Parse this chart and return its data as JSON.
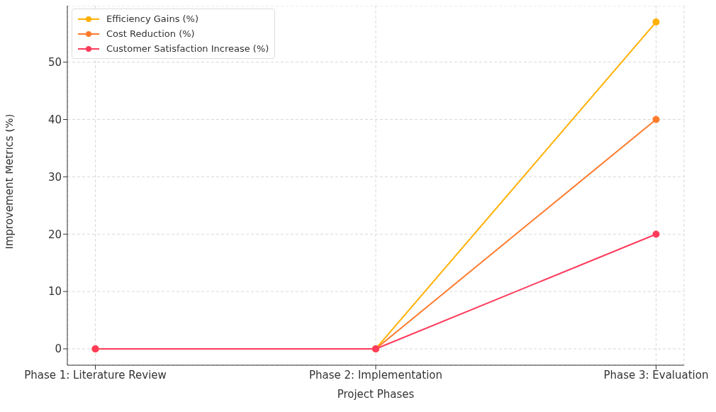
{
  "chart_data": {
    "type": "line",
    "xlabel": "Project Phases",
    "ylabel": "Improvement Metrics (%)",
    "categories": [
      "Phase 1: Literature Review",
      "Phase 2: Implementation",
      "Phase 3: Evaluation"
    ],
    "series": [
      {
        "name": "Efficiency Gains (%)",
        "color": "#ffb000",
        "values": [
          0,
          0,
          57
        ]
      },
      {
        "name": "Cost Reduction (%)",
        "color": "#ff7a2a",
        "values": [
          0,
          0,
          40
        ]
      },
      {
        "name": "Customer Satisfaction Increase (%)",
        "color": "#ff3b5c",
        "values": [
          0,
          0,
          20
        ]
      }
    ],
    "ylim": [
      -2.85,
      59.85
    ],
    "yticks": [
      0,
      10,
      20,
      30,
      40,
      50
    ],
    "grid": true,
    "legend": "top left",
    "marker": "circle",
    "line_style": "solid"
  }
}
